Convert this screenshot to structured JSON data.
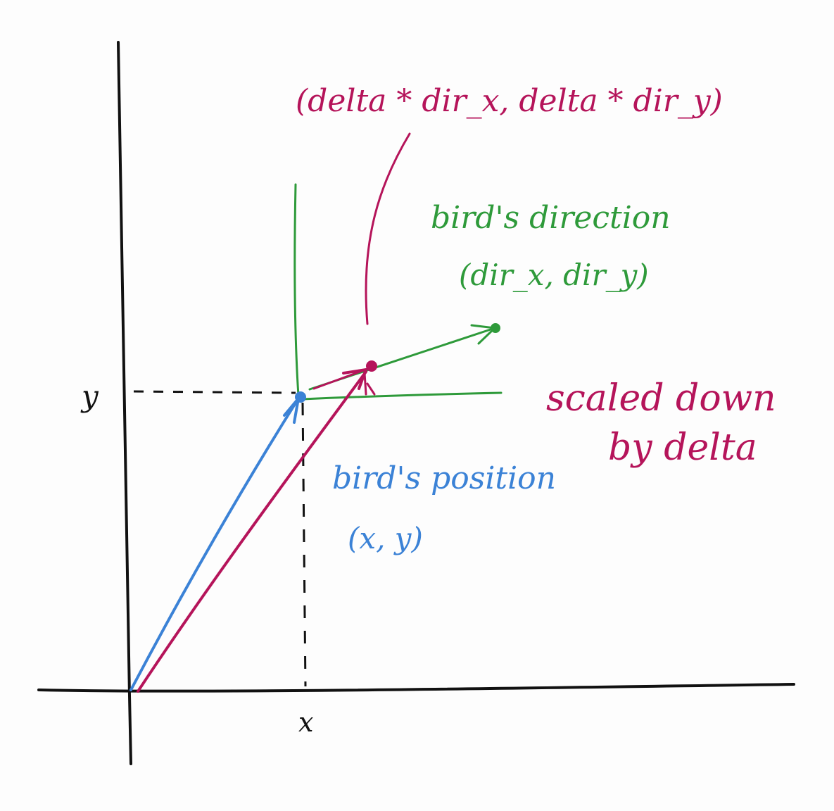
{
  "colors": {
    "axes": "#111111",
    "position": "#3b82d6",
    "direction": "#2e9a3a",
    "scaled": "#b5145a"
  },
  "axis_labels": {
    "x": "x",
    "y": "y"
  },
  "annotations": {
    "scaled_vector": "(delta * dir_x, delta * dir_y)",
    "direction_title": "bird's direction",
    "direction_coords": "(dir_x, dir_y)",
    "scaled_down_line1": "scaled down",
    "scaled_down_line2": "by delta",
    "position_title": "bird's position",
    "position_coords": "(x, y)"
  }
}
